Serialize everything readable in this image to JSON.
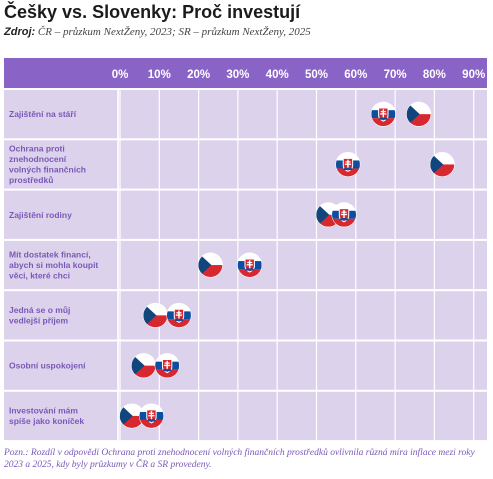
{
  "header": {
    "title": "Češky vs. Slovenky: Proč investují",
    "source_label": "Zdroj:",
    "source_text": "ČR – průzkum NextŽeny, 2023; SR – průzkum NextŽeny, 2025"
  },
  "note": "Pozn.: Rozdíl v odpovědi Ochrana proti znehodnocení volných finančních prostředků ovlivnila různá míra inflace mezi roky 2023 a 2025, kdy byly průzkumy v ČR a SR provedeny.",
  "colors": {
    "header_band": "#8a63c6",
    "plot_bg": "#dcd2ec",
    "grid": "#ffffff",
    "label_text": "#7b58b8",
    "flag_white": "#ffffff",
    "flag_red": "#d7282f",
    "flag_blue": "#11457e",
    "flag_sk_blue": "#0b4ea2"
  },
  "chart_data": {
    "type": "dot",
    "x_ticks": [
      "0%",
      "10%",
      "20%",
      "30%",
      "40%",
      "50%",
      "60%",
      "70%",
      "80%",
      "90%"
    ],
    "xlim": [
      0,
      90
    ],
    "legend": "none (series shown by flags)",
    "grid": true,
    "categories": [
      [
        "Zajištění na stáří"
      ],
      [
        "Ochrana proti",
        "znehodnocení",
        "volných finančních",
        "prostředků"
      ],
      [
        "Zajištění rodiny"
      ],
      [
        "Mít dostatek financí,",
        "abych si mohla koupit",
        "věci, které chci"
      ],
      [
        "Jedná se o můj",
        "vedlejší příjem"
      ],
      [
        "Osobní uspokojení"
      ],
      [
        "Investování mám",
        "spíše jako koníček"
      ]
    ],
    "series": [
      {
        "flag": "cz-flag",
        "values": [
          76,
          82,
          53,
          23,
          9,
          6,
          3
        ]
      },
      {
        "flag": "sk-flag",
        "values": [
          67,
          58,
          57,
          33,
          15,
          12,
          8
        ]
      }
    ]
  }
}
